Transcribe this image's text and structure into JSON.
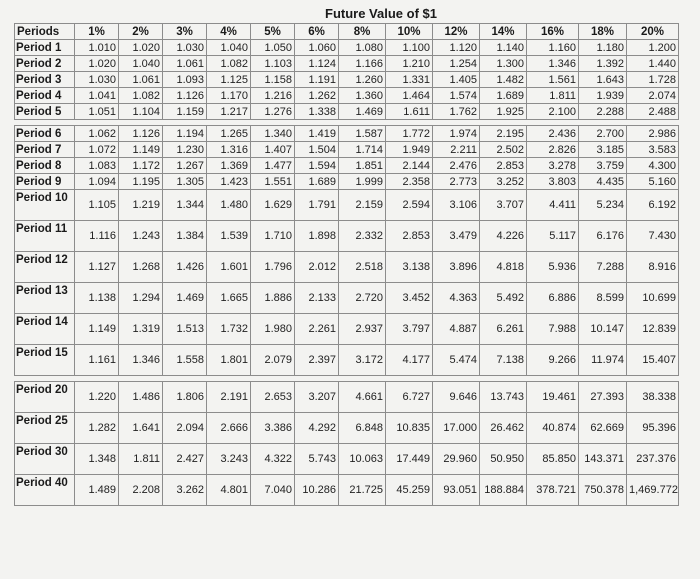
{
  "title": "Future Value of $1",
  "header": {
    "label": "Periods",
    "rates": [
      "1%",
      "2%",
      "3%",
      "4%",
      "5%",
      "6%",
      "8%",
      "10%",
      "12%",
      "14%",
      "16%",
      "18%",
      "20%"
    ]
  },
  "rows": [
    {
      "label": "Period 1",
      "values": [
        "1.010",
        "1.020",
        "1.030",
        "1.040",
        "1.050",
        "1.060",
        "1.080",
        "1.100",
        "1.120",
        "1.140",
        "1.160",
        "1.180",
        "1.200"
      ]
    },
    {
      "label": "Period 2",
      "values": [
        "1.020",
        "1.040",
        "1.061",
        "1.082",
        "1.103",
        "1.124",
        "1.166",
        "1.210",
        "1.254",
        "1.300",
        "1.346",
        "1.392",
        "1.440"
      ]
    },
    {
      "label": "Period 3",
      "values": [
        "1.030",
        "1.061",
        "1.093",
        "1.125",
        "1.158",
        "1.191",
        "1.260",
        "1.331",
        "1.405",
        "1.482",
        "1.561",
        "1.643",
        "1.728"
      ]
    },
    {
      "label": "Period 4",
      "values": [
        "1.041",
        "1.082",
        "1.126",
        "1.170",
        "1.216",
        "1.262",
        "1.360",
        "1.464",
        "1.574",
        "1.689",
        "1.811",
        "1.939",
        "2.074"
      ]
    },
    {
      "label": "Period 5",
      "values": [
        "1.051",
        "1.104",
        "1.159",
        "1.217",
        "1.276",
        "1.338",
        "1.469",
        "1.611",
        "1.762",
        "1.925",
        "2.100",
        "2.288",
        "2.488"
      ]
    },
    {
      "label": "Period 6",
      "values": [
        "1.062",
        "1.126",
        "1.194",
        "1.265",
        "1.340",
        "1.419",
        "1.587",
        "1.772",
        "1.974",
        "2.195",
        "2.436",
        "2.700",
        "2.986"
      ]
    },
    {
      "label": "Period 7",
      "values": [
        "1.072",
        "1.149",
        "1.230",
        "1.316",
        "1.407",
        "1.504",
        "1.714",
        "1.949",
        "2.211",
        "2.502",
        "2.826",
        "3.185",
        "3.583"
      ]
    },
    {
      "label": "Period 8",
      "values": [
        "1.083",
        "1.172",
        "1.267",
        "1.369",
        "1.477",
        "1.594",
        "1.851",
        "2.144",
        "2.476",
        "2.853",
        "3.278",
        "3.759",
        "4.300"
      ]
    },
    {
      "label": "Period 9",
      "values": [
        "1.094",
        "1.195",
        "1.305",
        "1.423",
        "1.551",
        "1.689",
        "1.999",
        "2.358",
        "2.773",
        "3.252",
        "3.803",
        "4.435",
        "5.160"
      ]
    },
    {
      "label": "Period 10",
      "values": [
        "1.105",
        "1.219",
        "1.344",
        "1.480",
        "1.629",
        "1.791",
        "2.159",
        "2.594",
        "3.106",
        "3.707",
        "4.411",
        "5.234",
        "6.192"
      ]
    },
    {
      "label": "Period 11",
      "values": [
        "1.116",
        "1.243",
        "1.384",
        "1.539",
        "1.710",
        "1.898",
        "2.332",
        "2.853",
        "3.479",
        "4.226",
        "5.117",
        "6.176",
        "7.430"
      ]
    },
    {
      "label": "Period 12",
      "values": [
        "1.127",
        "1.268",
        "1.426",
        "1.601",
        "1.796",
        "2.012",
        "2.518",
        "3.138",
        "3.896",
        "4.818",
        "5.936",
        "7.288",
        "8.916"
      ]
    },
    {
      "label": "Period 13",
      "values": [
        "1.138",
        "1.294",
        "1.469",
        "1.665",
        "1.886",
        "2.133",
        "2.720",
        "3.452",
        "4.363",
        "5.492",
        "6.886",
        "8.599",
        "10.699"
      ]
    },
    {
      "label": "Period 14",
      "values": [
        "1.149",
        "1.319",
        "1.513",
        "1.732",
        "1.980",
        "2.261",
        "2.937",
        "3.797",
        "4.887",
        "6.261",
        "7.988",
        "10.147",
        "12.839"
      ]
    },
    {
      "label": "Period 15",
      "values": [
        "1.161",
        "1.346",
        "1.558",
        "1.801",
        "2.079",
        "2.397",
        "3.172",
        "4.177",
        "5.474",
        "7.138",
        "9.266",
        "11.974",
        "15.407"
      ]
    },
    {
      "label": "Period 20",
      "values": [
        "1.220",
        "1.486",
        "1.806",
        "2.191",
        "2.653",
        "3.207",
        "4.661",
        "6.727",
        "9.646",
        "13.743",
        "19.461",
        "27.393",
        "38.338"
      ]
    },
    {
      "label": "Period 25",
      "values": [
        "1.282",
        "1.641",
        "2.094",
        "2.666",
        "3.386",
        "4.292",
        "6.848",
        "10.835",
        "17.000",
        "26.462",
        "40.874",
        "62.669",
        "95.396"
      ]
    },
    {
      "label": "Period 30",
      "values": [
        "1.348",
        "1.811",
        "2.427",
        "3.243",
        "4.322",
        "5.743",
        "10.063",
        "17.449",
        "29.960",
        "50.950",
        "85.850",
        "143.371",
        "237.376"
      ]
    },
    {
      "label": "Period 40",
      "values": [
        "1.489",
        "2.208",
        "3.262",
        "4.801",
        "7.040",
        "10.286",
        "21.725",
        "45.259",
        "93.051",
        "188.884",
        "378.721",
        "750.378",
        "1,469.772"
      ]
    }
  ]
}
